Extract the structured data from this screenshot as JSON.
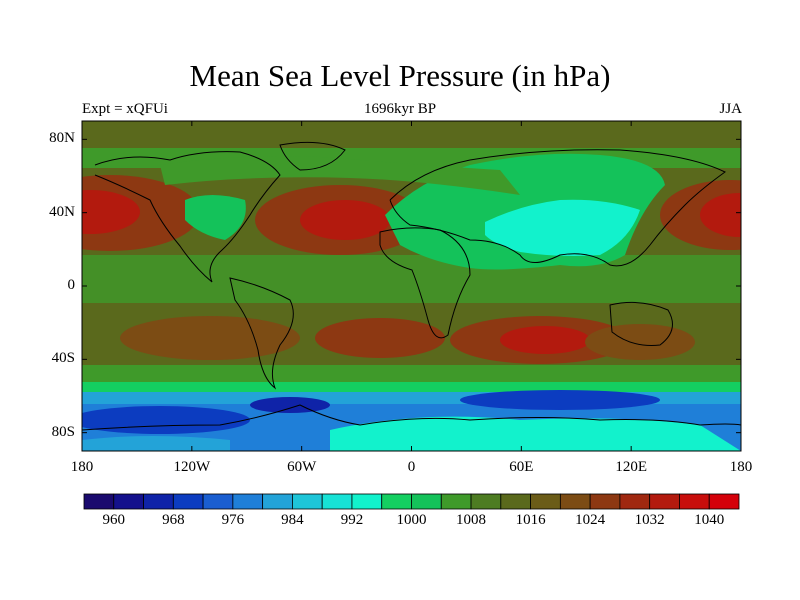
{
  "title": "Mean Sea Level Pressure (in hPa)",
  "subtitle_left": "Expt = xQFUi",
  "subtitle_center": "1696kyr BP",
  "subtitle_right": "JJA",
  "lat_ticks": [
    {
      "label": "80N",
      "lat": 80
    },
    {
      "label": "40N",
      "lat": 40
    },
    {
      "label": "0",
      "lat": 0
    },
    {
      "label": "40S",
      "lat": -40
    },
    {
      "label": "80S",
      "lat": -80
    }
  ],
  "lon_ticks": [
    {
      "label": "180",
      "lon": -180
    },
    {
      "label": "120W",
      "lon": -120
    },
    {
      "label": "60W",
      "lon": -60
    },
    {
      "label": "0",
      "lon": 0
    },
    {
      "label": "60E",
      "lon": 60
    },
    {
      "label": "120E",
      "lon": 120
    },
    {
      "label": "180",
      "lon": 180
    }
  ],
  "colorbar": {
    "levels": [
      956,
      960,
      964,
      968,
      972,
      976,
      980,
      984,
      988,
      992,
      996,
      1000,
      1004,
      1008,
      1012,
      1016,
      1020,
      1024,
      1028,
      1032,
      1036,
      1040,
      1044
    ],
    "colors": [
      "#1a0a6e",
      "#14118c",
      "#0f23a8",
      "#0c3cc0",
      "#1a5ed0",
      "#1f7fd8",
      "#23a3d8",
      "#1ec5d8",
      "#17e2d6",
      "#12f2cc",
      "#14cf61",
      "#14c25a",
      "#3f9a2a",
      "#4d7c22",
      "#5a691c",
      "#6b5c18",
      "#7c4c14",
      "#8d3812",
      "#a02810",
      "#b31a0e",
      "#c80e0c",
      "#d4000a"
    ],
    "labels": [
      "960",
      "968",
      "976",
      "984",
      "992",
      "1000",
      "1008",
      "1016",
      "1024",
      "1032",
      "1040"
    ]
  },
  "map_regions": {
    "background_color": "#5a691c",
    "land_green_color": "#14c25a",
    "land_mid_color": "#3f9a2a",
    "cyan_color": "#12f2cc",
    "high_color": "#8d3812",
    "high_core_color": "#b31a0e",
    "southern_ocean_colors": [
      "#23a3d8",
      "#1f7fd8",
      "#0f23a8",
      "#0c3cc0"
    ]
  }
}
